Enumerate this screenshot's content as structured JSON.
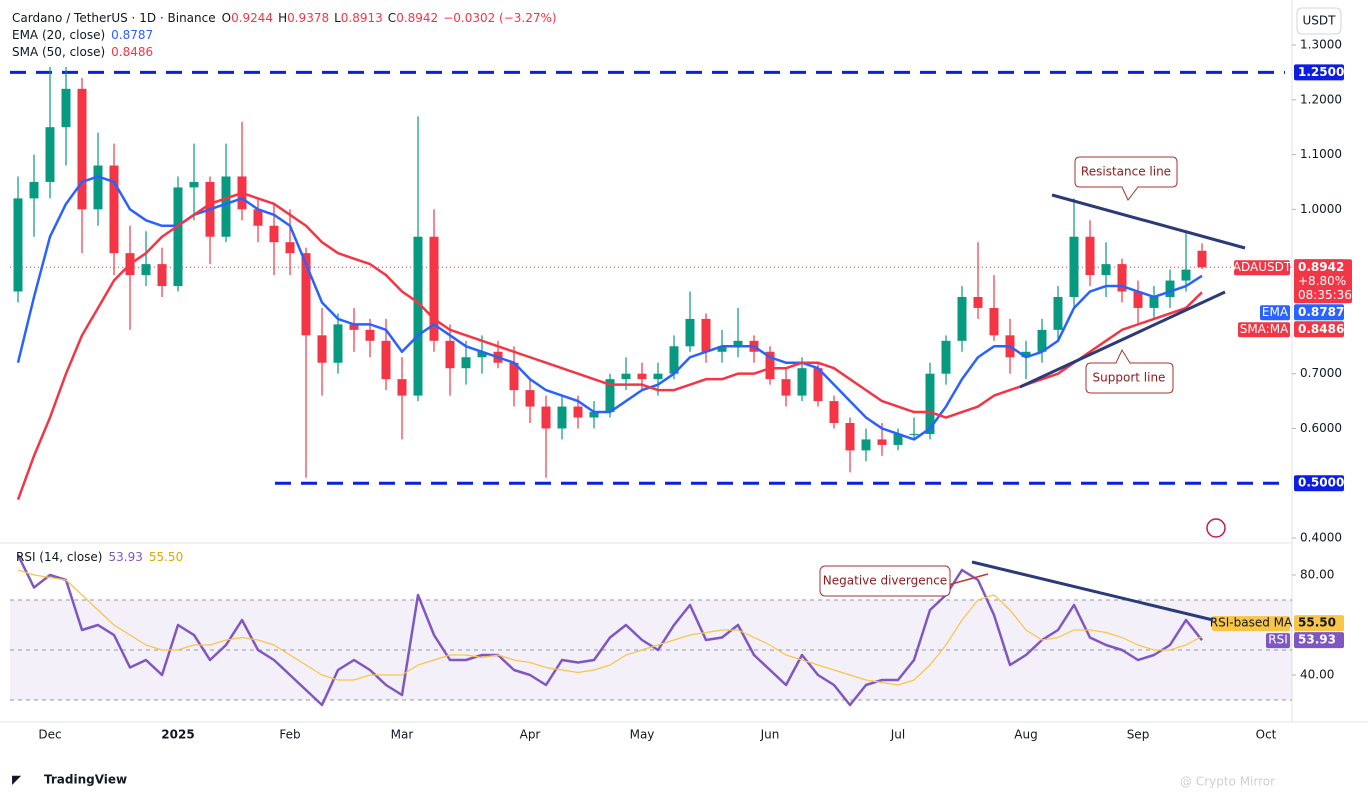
{
  "chart_data": {
    "type": "candlestick",
    "title": "Cardano / TetherUS · 1D · Binance",
    "ohlc_prefixes": [
      "O",
      "H",
      "L",
      "C"
    ],
    "change": "−0.0302 (−3.27%)",
    "y_axis_label": "USDT",
    "categories": [
      null,
      null,
      "Dec",
      null,
      null,
      null,
      null,
      null,
      null,
      null,
      "2025",
      null,
      null,
      null,
      null,
      null,
      null,
      "Feb",
      null,
      null,
      null,
      null,
      null,
      null,
      "Mar",
      null,
      null,
      null,
      null,
      null,
      null,
      null,
      "Apr",
      null,
      null,
      null,
      null,
      null,
      null,
      "May",
      null,
      null,
      null,
      null,
      null,
      null,
      null,
      "Jun",
      null,
      null,
      null,
      null,
      null,
      null,
      null,
      "Jul",
      null,
      null,
      null,
      null,
      null,
      null,
      null,
      "Aug",
      null,
      null,
      null,
      null,
      null,
      null,
      "Sep",
      null,
      null,
      null,
      null,
      null,
      null,
      null,
      "Oct"
    ],
    "open": [
      0.85,
      1.02,
      1.05,
      1.15,
      1.22,
      1.0,
      1.08,
      0.92,
      0.88,
      0.9,
      0.86,
      1.04,
      1.05,
      0.95,
      1.06,
      1.0,
      0.97,
      0.94,
      0.92,
      0.77,
      0.72,
      0.79,
      0.78,
      0.76,
      0.69,
      0.66,
      0.95,
      0.76,
      0.71,
      0.73,
      0.74,
      0.72,
      0.67,
      0.64,
      0.6,
      0.64,
      0.62,
      0.63,
      0.69,
      0.7,
      0.69,
      0.7,
      0.75,
      0.8,
      0.74,
      0.75,
      0.76,
      0.74,
      0.69,
      0.66,
      0.71,
      0.65,
      0.61,
      0.56,
      0.58,
      0.57,
      0.59,
      0.59,
      0.7,
      0.76,
      0.84,
      0.82,
      0.77,
      0.73,
      0.74,
      0.78,
      0.84,
      0.95,
      0.88,
      0.9,
      0.85,
      0.82,
      0.84,
      0.87,
      0.9244,
      null,
      null,
      null,
      null
    ],
    "high": [
      1.06,
      1.1,
      1.26,
      1.26,
      1.24,
      1.14,
      1.12,
      0.97,
      0.96,
      0.93,
      1.06,
      1.12,
      1.06,
      1.12,
      1.16,
      1.02,
      1.01,
      1.0,
      0.93,
      0.82,
      0.81,
      0.82,
      0.8,
      0.8,
      0.73,
      1.17,
      1.0,
      0.79,
      0.76,
      0.77,
      0.76,
      0.75,
      0.69,
      0.66,
      0.66,
      0.66,
      0.65,
      0.7,
      0.73,
      0.72,
      0.72,
      0.77,
      0.85,
      0.81,
      0.78,
      0.82,
      0.77,
      0.75,
      0.71,
      0.73,
      0.72,
      0.66,
      0.62,
      0.6,
      0.61,
      0.6,
      0.62,
      0.72,
      0.77,
      0.86,
      0.94,
      0.88,
      0.8,
      0.76,
      0.8,
      0.86,
      1.02,
      0.98,
      0.94,
      0.91,
      0.87,
      0.86,
      0.89,
      0.96,
      0.9378,
      null,
      null,
      null,
      null
    ],
    "low": [
      0.83,
      0.95,
      1.02,
      1.08,
      0.92,
      0.97,
      0.88,
      0.78,
      0.86,
      0.84,
      0.85,
      0.98,
      0.9,
      0.94,
      0.98,
      0.94,
      0.88,
      0.88,
      0.51,
      0.66,
      0.7,
      0.74,
      0.73,
      0.67,
      0.58,
      0.65,
      0.74,
      0.66,
      0.68,
      0.7,
      0.71,
      0.64,
      0.61,
      0.51,
      0.58,
      0.6,
      0.6,
      0.62,
      0.67,
      0.67,
      0.66,
      0.69,
      0.74,
      0.72,
      0.72,
      0.73,
      0.72,
      0.68,
      0.64,
      0.65,
      0.64,
      0.6,
      0.52,
      0.54,
      0.55,
      0.56,
      0.58,
      0.58,
      0.68,
      0.74,
      0.8,
      0.76,
      0.7,
      0.69,
      0.72,
      0.76,
      0.82,
      0.86,
      0.84,
      0.83,
      0.79,
      0.8,
      0.82,
      0.85,
      0.8913,
      null,
      null,
      null,
      null
    ],
    "close": [
      1.02,
      1.05,
      1.15,
      1.22,
      1.0,
      1.08,
      0.92,
      0.88,
      0.9,
      0.86,
      1.04,
      1.05,
      0.95,
      1.06,
      1.0,
      0.97,
      0.94,
      0.92,
      0.77,
      0.72,
      0.79,
      0.78,
      0.76,
      0.69,
      0.66,
      0.95,
      0.76,
      0.71,
      0.73,
      0.74,
      0.72,
      0.67,
      0.64,
      0.6,
      0.64,
      0.62,
      0.63,
      0.69,
      0.7,
      0.69,
      0.7,
      0.75,
      0.8,
      0.74,
      0.75,
      0.76,
      0.74,
      0.69,
      0.66,
      0.71,
      0.65,
      0.61,
      0.56,
      0.58,
      0.57,
      0.59,
      0.59,
      0.7,
      0.76,
      0.84,
      0.82,
      0.77,
      0.73,
      0.74,
      0.78,
      0.84,
      0.95,
      0.88,
      0.9,
      0.85,
      0.82,
      0.84,
      0.87,
      0.89,
      0.8942,
      null,
      null,
      null,
      null
    ],
    "up_color": "#089981",
    "down_color": "#f23645",
    "series": [
      {
        "name": "EMA (20, close)",
        "color": "#2962ff",
        "values": [
          0.72,
          0.84,
          0.95,
          1.01,
          1.05,
          1.06,
          1.05,
          1.0,
          0.98,
          0.97,
          0.97,
          0.99,
          1.0,
          1.01,
          1.02,
          1.0,
          0.99,
          0.97,
          0.9,
          0.83,
          0.8,
          0.79,
          0.79,
          0.78,
          0.74,
          0.77,
          0.79,
          0.77,
          0.75,
          0.74,
          0.73,
          0.72,
          0.69,
          0.67,
          0.66,
          0.65,
          0.63,
          0.63,
          0.65,
          0.67,
          0.68,
          0.7,
          0.73,
          0.74,
          0.75,
          0.75,
          0.75,
          0.73,
          0.72,
          0.72,
          0.71,
          0.68,
          0.65,
          0.62,
          0.6,
          0.59,
          0.58,
          0.6,
          0.64,
          0.69,
          0.73,
          0.75,
          0.75,
          0.73,
          0.74,
          0.76,
          0.82,
          0.85,
          0.86,
          0.86,
          0.85,
          0.84,
          0.85,
          0.86,
          0.8787,
          null,
          null,
          null,
          null
        ]
      },
      {
        "name": "SMA (50, close)",
        "color": "#f23645",
        "values": [
          0.47,
          0.55,
          0.62,
          0.7,
          0.77,
          0.82,
          0.87,
          0.9,
          0.92,
          0.95,
          0.97,
          0.99,
          1.01,
          1.02,
          1.03,
          1.02,
          1.01,
          0.99,
          0.97,
          0.94,
          0.92,
          0.91,
          0.9,
          0.88,
          0.85,
          0.83,
          0.8,
          0.78,
          0.77,
          0.76,
          0.75,
          0.74,
          0.73,
          0.72,
          0.71,
          0.7,
          0.69,
          0.68,
          0.68,
          0.68,
          0.67,
          0.67,
          0.68,
          0.69,
          0.69,
          0.7,
          0.7,
          0.71,
          0.71,
          0.72,
          0.72,
          0.71,
          0.69,
          0.67,
          0.65,
          0.64,
          0.63,
          0.63,
          0.62,
          0.63,
          0.64,
          0.66,
          0.67,
          0.68,
          0.69,
          0.7,
          0.72,
          0.74,
          0.76,
          0.78,
          0.79,
          0.8,
          0.81,
          0.82,
          0.8486,
          null,
          null,
          null,
          null
        ]
      }
    ],
    "ylim": [
      0.3964,
      1.373
    ],
    "yticks": [
      {
        "value": 0.4,
        "label": "0.4000"
      },
      {
        "value": 0.6,
        "label": "0.6000"
      },
      {
        "value": 0.7,
        "label": "0.7000"
      },
      {
        "value": 1.0,
        "label": "1.0000"
      },
      {
        "value": 1.1,
        "label": "1.1000"
      },
      {
        "value": 1.2,
        "label": "1.2000"
      },
      {
        "value": 1.3,
        "label": "1.3000"
      }
    ],
    "grid": false,
    "levels": [
      {
        "value": 1.25,
        "label": "1.2500"
      },
      {
        "value": 0.5,
        "label": "0.5000"
      }
    ],
    "level_color": "#0c1ee0",
    "price_tags": [
      {
        "name": "ADAUSDT",
        "change": "+8.80%",
        "timer": "08:35:36"
      },
      {
        "name": "EMA"
      },
      {
        "name": "SMA:MA"
      }
    ],
    "annotations": [
      "Resistance line",
      "Support line",
      "Negative divergence"
    ],
    "rsi": {
      "title": "RSI (14, close)",
      "series": [
        {
          "name": "RSI",
          "color": "#7e57c2",
          "values": [
            88,
            75,
            80,
            78,
            58,
            60,
            56,
            43,
            46,
            40,
            60,
            56,
            46,
            52,
            62,
            50,
            46,
            40,
            34,
            28,
            42,
            46,
            42,
            36,
            32,
            72,
            56,
            46,
            46,
            48,
            48,
            42,
            40,
            36,
            46,
            45,
            46,
            55,
            60,
            54,
            50,
            60,
            68,
            54,
            55,
            60,
            48,
            42,
            36,
            48,
            40,
            36,
            28,
            36,
            38,
            38,
            46,
            66,
            72,
            82,
            78,
            64,
            44,
            48,
            54,
            58,
            68,
            55,
            52,
            50,
            46,
            48,
            52,
            62,
            53.93,
            null,
            null,
            null,
            null
          ]
        },
        {
          "name": "RSI-based MA",
          "color": "#f7c548",
          "last_label": "55.50",
          "values": [
            82,
            80,
            79,
            78,
            72,
            66,
            60,
            56,
            52,
            50,
            50,
            52,
            52,
            54,
            55,
            54,
            52,
            48,
            44,
            40,
            38,
            38,
            40,
            40,
            40,
            44,
            46,
            48,
            48,
            47,
            48,
            46,
            45,
            43,
            42,
            41,
            42,
            44,
            48,
            50,
            52,
            54,
            56,
            57,
            58,
            58,
            55,
            52,
            48,
            46,
            44,
            42,
            40,
            38,
            37,
            36,
            38,
            44,
            52,
            62,
            70,
            72,
            66,
            58,
            54,
            55,
            58,
            58,
            57,
            55,
            52,
            50,
            50,
            52,
            55.5,
            null,
            null,
            null,
            null
          ]
        }
      ],
      "ylim": [
        20,
        92
      ],
      "yticks": [
        {
          "value": 40,
          "label": "40.00"
        },
        {
          "value": 80,
          "label": "80.00"
        }
      ],
      "bands": [
        70,
        50,
        30
      ]
    },
    "branding": "TradingView",
    "watermark": "@ Crypto Mirror"
  }
}
